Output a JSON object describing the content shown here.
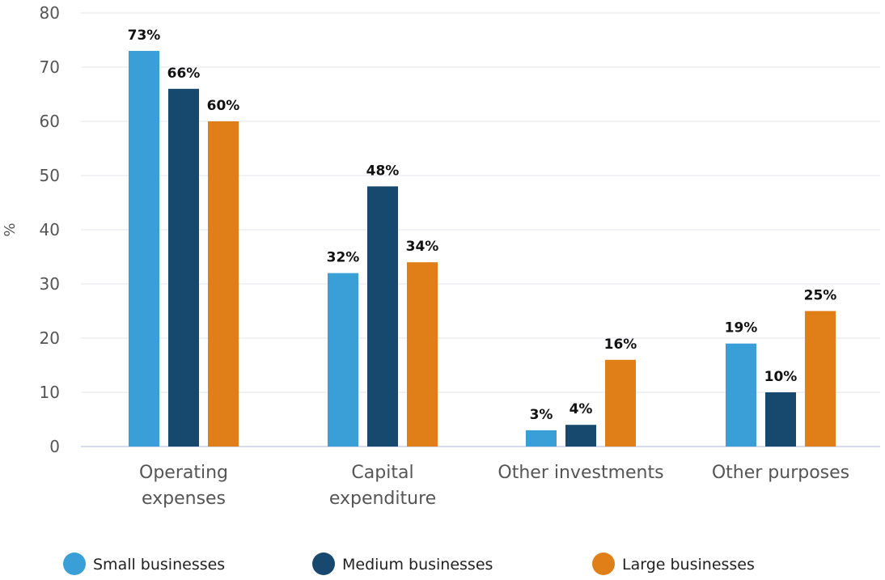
{
  "chart_data": {
    "type": "bar",
    "ylabel": "%",
    "ylim": [
      0,
      80
    ],
    "yticks": [
      0,
      10,
      20,
      30,
      40,
      50,
      60,
      70,
      80
    ],
    "grid": true,
    "legend_position": "bottom",
    "categories": [
      [
        "Operating",
        "expenses"
      ],
      [
        "Capital",
        "expenditure"
      ],
      [
        "Other investments"
      ],
      [
        "Other purposes"
      ]
    ],
    "series": [
      {
        "name": "Small businesses",
        "color": "#3a9fd6",
        "values": [
          73,
          32,
          3,
          19
        ],
        "labels": [
          "73%",
          "32%",
          "3%",
          "19%"
        ]
      },
      {
        "name": "Medium businesses",
        "color": "#17486e",
        "values": [
          66,
          48,
          4,
          10
        ],
        "labels": [
          "66%",
          "48%",
          "4%",
          "10%"
        ]
      },
      {
        "name": "Large businesses",
        "color": "#e07f17",
        "values": [
          60,
          34,
          16,
          25
        ],
        "labels": [
          "60%",
          "34%",
          "16%",
          "25%"
        ]
      }
    ]
  }
}
